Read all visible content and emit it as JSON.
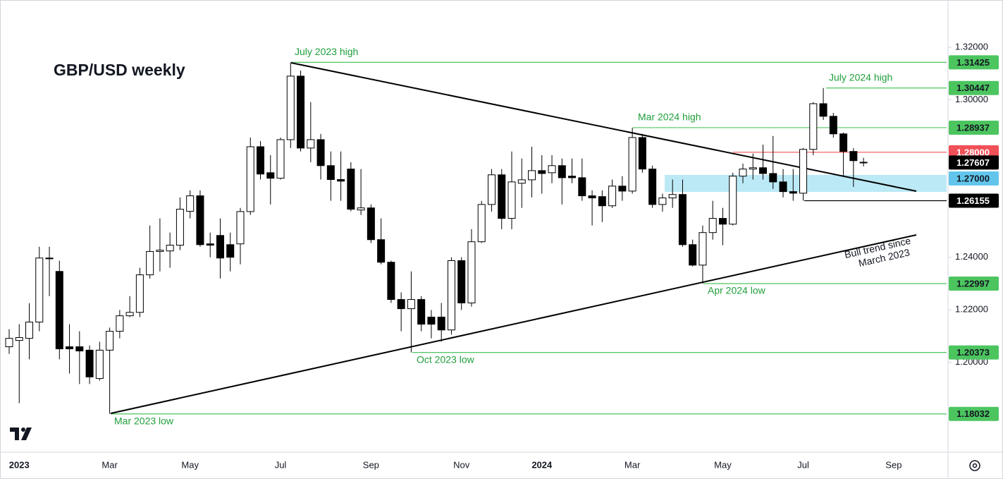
{
  "chart_data": {
    "type": "candlestick",
    "title": "GBP/USD weekly",
    "categories": [
      null,
      "2023",
      null,
      null,
      null,
      null,
      null,
      null,
      null,
      null,
      "Mar",
      null,
      null,
      null,
      null,
      null,
      null,
      null,
      "May",
      null,
      null,
      null,
      null,
      null,
      null,
      null,
      null,
      "Jul",
      null,
      null,
      null,
      null,
      null,
      null,
      null,
      null,
      "Sep",
      null,
      null,
      null,
      null,
      null,
      null,
      null,
      null,
      "Nov",
      null,
      null,
      null,
      null,
      null,
      null,
      null,
      "2024",
      null,
      null,
      null,
      null,
      null,
      null,
      null,
      null,
      "Mar",
      null,
      null,
      null,
      null,
      null,
      null,
      null,
      null,
      "May",
      null,
      null,
      null,
      null,
      null,
      null,
      null,
      "Jul",
      null,
      null,
      null,
      null,
      null,
      null,
      null,
      null,
      "Sep",
      null,
      null,
      null,
      null,
      null
    ],
    "open": [
      1.2059,
      1.2083,
      1.2091,
      1.2153,
      1.2397,
      1.2346,
      1.2059,
      1.2059,
      1.2046,
      1.1938,
      1.2046,
      1.2118,
      1.2177,
      1.219,
      1.2333,
      1.2422,
      1.2424,
      1.2446,
      1.2575,
      1.2634,
      1.2451,
      1.2483,
      1.2448,
      1.2451,
      1.2574,
      1.2821,
      1.2722,
      1.2701,
      1.2848,
      1.309,
      1.2816,
      1.2848,
      1.2749,
      1.2696,
      1.2736,
      1.258,
      1.2588,
      1.2467,
      1.2381,
      1.2239,
      1.2204,
      1.2239,
      1.2172,
      1.2172,
      1.2123,
      1.2387,
      1.2226,
      1.2459,
      1.2601,
      1.2714,
      1.2548,
      1.2682,
      1.2695,
      1.273,
      1.2722,
      1.2749,
      1.2709,
      1.2703,
      1.2634,
      1.2631,
      1.2596,
      1.2671,
      1.2652,
      1.2856,
      1.2736,
      1.2601,
      1.2626,
      1.2639,
      1.2448,
      1.237,
      1.2494,
      1.2548,
      1.2526,
      1.2709,
      1.2736,
      1.2741,
      1.2719,
      1.2687,
      1.265,
      1.2644,
      1.2811,
      1.2985,
      1.2937,
      1.287,
      1.2803,
      1.2762,
      null,
      null,
      null,
      null,
      null,
      null,
      null,
      null
    ],
    "high": [
      1.2126,
      1.2145,
      1.2225,
      1.244,
      1.244,
      1.2387,
      1.2145,
      1.2118,
      1.2064,
      1.2078,
      1.2132,
      1.2199,
      1.2252,
      1.236,
      1.2521,
      1.2548,
      1.2494,
      1.2628,
      1.2655,
      1.2655,
      1.2494,
      1.2548,
      1.2494,
      1.2588,
      1.2856,
      1.2843,
      1.2789,
      1.2856,
      1.31425,
      1.3111,
      1.2991,
      1.287,
      1.2803,
      1.2803,
      1.2762,
      1.2736,
      1.2601,
      1.2548,
      1.2387,
      1.2266,
      1.2346,
      1.2252,
      1.2199,
      1.2226,
      1.24,
      1.24,
      1.2507,
      1.2615,
      1.2736,
      1.2736,
      1.2803,
      1.2776,
      1.2821,
      1.2789,
      1.2789,
      1.2776,
      1.2776,
      1.2776,
      1.2655,
      1.2655,
      1.2696,
      1.2709,
      1.28937,
      1.287,
      1.2749,
      1.2642,
      1.2696,
      1.2696,
      1.2467,
      1.2521,
      1.2615,
      1.2588,
      1.2722,
      1.2757,
      1.2795,
      1.2829,
      1.2862,
      1.2736,
      1.2736,
      1.2816,
      1.2991,
      1.30447,
      1.295,
      1.2875,
      1.2816,
      1.2779,
      null,
      null,
      null,
      null,
      null,
      null,
      null,
      null
    ],
    "low": [
      1.2032,
      1.1844,
      1.2011,
      1.2118,
      1.2252,
      1.2011,
      1.1957,
      1.1917,
      1.1917,
      1.193,
      1.18032,
      1.2091,
      1.2172,
      1.2172,
      1.2319,
      1.2346,
      1.236,
      1.2427,
      1.2548,
      1.244,
      1.24,
      1.2319,
      1.2346,
      1.2373,
      1.2561,
      1.2696,
      1.2601,
      1.2696,
      1.2816,
      1.2803,
      1.2762,
      1.2696,
      1.2615,
      1.2615,
      1.2575,
      1.2561,
      1.2454,
      1.2373,
      1.2226,
      1.2118,
      1.20373,
      1.2118,
      1.2091,
      1.2078,
      1.2105,
      1.2199,
      1.2212,
      1.2454,
      1.2574,
      1.2507,
      1.2507,
      1.2588,
      1.2628,
      1.2642,
      1.2682,
      1.2601,
      1.2682,
      1.2615,
      1.2521,
      1.2534,
      1.2588,
      1.2615,
      1.2642,
      1.2722,
      1.2588,
      1.2574,
      1.2588,
      1.244,
      1.2365,
      1.22997,
      1.2467,
      1.2446,
      1.2521,
      1.2682,
      1.2696,
      1.2696,
      1.266,
      1.2628,
      1.2615,
      1.26155,
      1.2789,
      1.2923,
      1.2856,
      1.2709,
      1.2668,
      1.2746,
      null,
      null,
      null,
      null,
      null,
      null,
      null,
      null
    ],
    "close": [
      1.2091,
      1.2094,
      1.2153,
      1.2397,
      1.2394,
      1.2051,
      1.2051,
      1.2043,
      1.1944,
      1.2046,
      1.2118,
      1.2177,
      1.219,
      1.2333,
      1.2422,
      1.2427,
      1.2446,
      1.2583,
      1.2634,
      1.2448,
      1.2446,
      1.2397,
      1.24,
      1.2574,
      1.2821,
      1.2717,
      1.2701,
      1.2848,
      1.309,
      1.2816,
      1.2848,
      1.2749,
      1.2696,
      1.269,
      1.2583,
      1.2588,
      1.2467,
      1.2381,
      1.2239,
      1.2204,
      1.2239,
      1.2145,
      1.2145,
      1.2123,
      1.2387,
      1.2226,
      1.2459,
      1.2601,
      1.2714,
      1.2548,
      1.2687,
      1.2695,
      1.273,
      1.2719,
      1.2749,
      1.2703,
      1.2703,
      1.2634,
      1.2626,
      1.2596,
      1.2671,
      1.2652,
      1.2856,
      1.2736,
      1.2601,
      1.2626,
      1.2639,
      1.2448,
      1.237,
      1.2494,
      1.2548,
      1.2526,
      1.2709,
      1.2736,
      1.2741,
      1.2719,
      1.2687,
      1.265,
      1.2644,
      1.2811,
      1.2985,
      1.2937,
      1.287,
      1.2803,
      1.2768,
      1.27607,
      null,
      null,
      null,
      null,
      null,
      null,
      null,
      null
    ],
    "up_color": "#ffffff",
    "down_color": "#000000",
    "ylim": [
      1.166,
      1.338
    ],
    "yticks": [
      {
        "value": 1.2,
        "label": "1.20000"
      },
      {
        "value": 1.22,
        "label": "1.22000"
      },
      {
        "value": 1.24,
        "label": "1.24000"
      },
      {
        "value": 1.3,
        "label": "1.30000"
      },
      {
        "value": 1.32,
        "label": "1.32000"
      }
    ],
    "note_color": "#1e9e3a",
    "levels": [
      {
        "value": 1.31425,
        "label": "1.31425",
        "note": "July 2023 high",
        "color": "#4cc55f"
      },
      {
        "value": 1.30447,
        "label": "1.30447",
        "note": "July 2024 high",
        "color": "#4cc55f"
      },
      {
        "value": 1.28937,
        "label": "1.28937",
        "note": "Mar 2024 high",
        "color": "#4cc55f"
      },
      {
        "value": 1.28,
        "label": "1.28000",
        "color": "#f05057"
      },
      {
        "value": 1.27607,
        "label": "1.27607",
        "color": "#000000"
      },
      {
        "value": 1.27,
        "label": "1.27000",
        "color": "#62c6ec"
      },
      {
        "value": 1.26155,
        "label": "1.26155",
        "color": "#000000"
      },
      {
        "value": 1.22997,
        "label": "1.22997",
        "note": "Apr 2024 low",
        "color": "#4cc55f"
      },
      {
        "value": 1.20373,
        "label": "1.20373",
        "note": "Oct 2023 low",
        "color": "#4cc55f"
      },
      {
        "value": 1.18032,
        "label": "1.18032",
        "note": "Mar 2023 low",
        "color": "#4cc55f"
      }
    ],
    "trend_label": [
      "Bull trend since",
      "March 2023"
    ]
  }
}
